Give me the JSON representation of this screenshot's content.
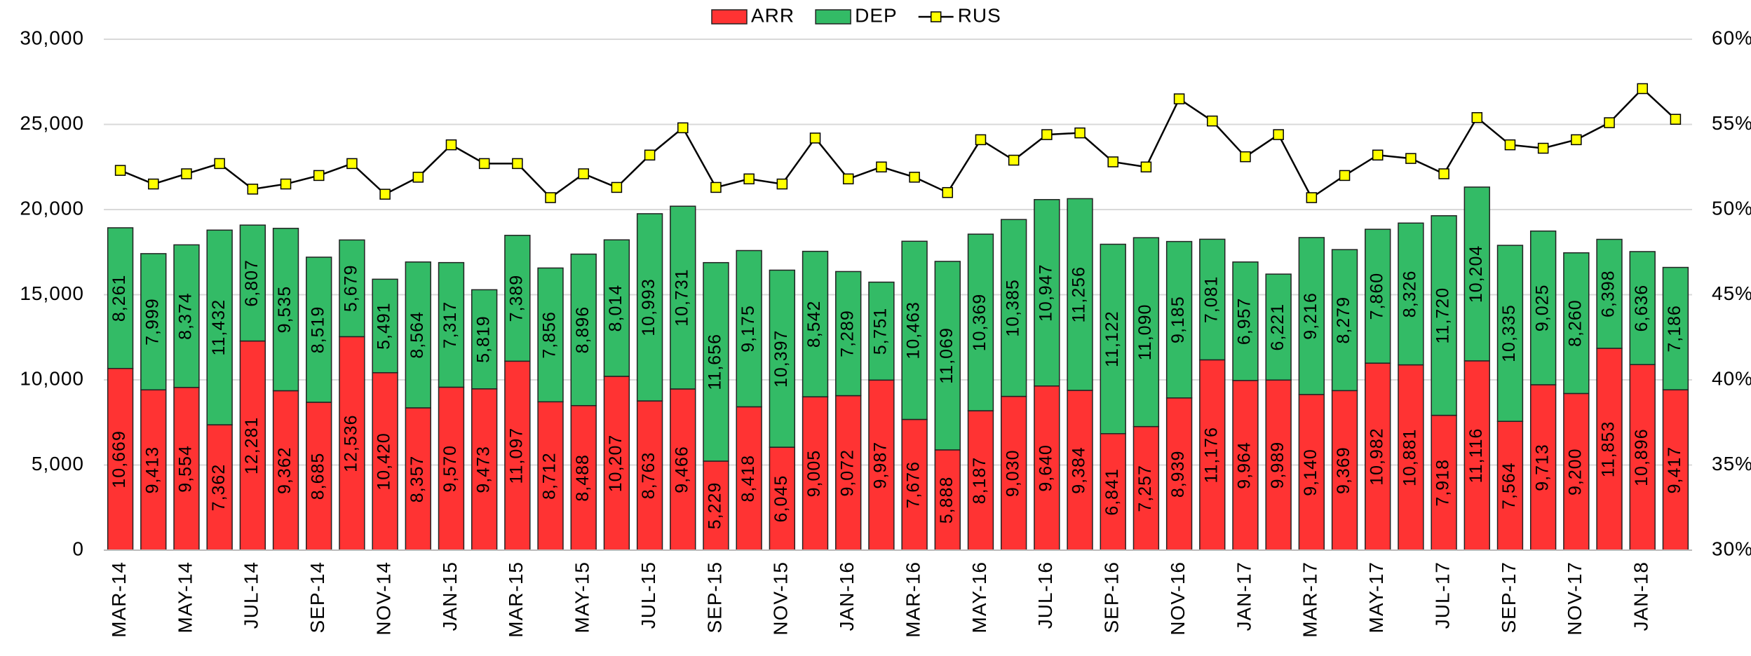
{
  "chart_data": {
    "type": "bar",
    "categories": [
      "MAR-14",
      null,
      "MAY-14",
      null,
      "JUL-14",
      null,
      "SEP-14",
      null,
      "NOV-14",
      null,
      "JAN-15",
      null,
      "MAR-15",
      null,
      "MAY-15",
      null,
      "JUL-15",
      null,
      "SEP-15",
      null,
      "NOV-15",
      null,
      "JAN-16",
      null,
      "MAR-16",
      null,
      "MAY-16",
      null,
      "JUL-16",
      null,
      "SEP-16",
      null,
      "NOV-16",
      null,
      "JAN-17",
      null,
      "MAR-17",
      null,
      "MAY-17",
      null,
      "JUL-17",
      null,
      "SEP-17",
      null,
      "NOV-17",
      null,
      "JAN-18",
      null
    ],
    "series": [
      {
        "name": "ARR",
        "color": "#ff3333",
        "values": [
          10669,
          9413,
          9554,
          7362,
          12281,
          9362,
          8685,
          12536,
          10420,
          8357,
          9570,
          9473,
          11097,
          8712,
          8488,
          10207,
          8763,
          9466,
          5229,
          8418,
          6045,
          9005,
          9072,
          9987,
          7676,
          5888,
          8187,
          9030,
          9640,
          9384,
          6841,
          7257,
          8939,
          11176,
          9964,
          9989,
          9140,
          9369,
          10982,
          10881,
          7918,
          11116,
          7564,
          9713,
          9200,
          11853,
          10896,
          9417
        ],
        "value_labels": [
          "10,669",
          "9,413",
          "9,554",
          "7,362",
          "12,281",
          "9,362",
          "8,685",
          "12,536",
          "10,420",
          "8,357",
          "9,570",
          "9,473",
          "11,097",
          "8,712",
          "8,488",
          "10,207",
          "8,763",
          "9,466",
          "5,229",
          "8,418",
          "6,045",
          "9,005",
          "9,072",
          "9,987",
          "7,676",
          "5,888",
          "8,187",
          "9,030",
          "9,640",
          "9,384",
          "6,841",
          "7,257",
          "8,939",
          "11,176",
          "9,964",
          "9,989",
          "9,140",
          "9,369",
          "10,982",
          "10,881",
          "7,918",
          "11,116",
          "7,564",
          "9,713",
          "9,200",
          "11,853",
          "10,896",
          "9,417"
        ]
      },
      {
        "name": "DEP",
        "color": "#33bb66",
        "values": [
          8261,
          7999,
          8374,
          11432,
          6807,
          9535,
          8519,
          5679,
          5491,
          8564,
          7317,
          5819,
          7389,
          7856,
          8896,
          8014,
          10993,
          10731,
          11656,
          9175,
          10397,
          8542,
          7289,
          5751,
          10463,
          11069,
          10369,
          10385,
          10947,
          11256,
          11122,
          11090,
          9185,
          7081,
          6957,
          6221,
          9216,
          8279,
          7860,
          8326,
          11720,
          10204,
          10335,
          9025,
          8260,
          6398,
          6636,
          7186
        ],
        "value_labels": [
          "8,261",
          "7,999",
          "8,374",
          "11,432",
          "6,807",
          "9,535",
          "8,519",
          "5,679",
          "5,491",
          "8,564",
          "7,317",
          "5,819",
          "7,389",
          "7,856",
          "8,896",
          "8,014",
          "10,993",
          "10,731",
          "11,656",
          "9,175",
          "10,397",
          "8,542",
          "7,289",
          "5,751",
          "10,463",
          "11,069",
          "10,369",
          "10,385",
          "10,947",
          "11,256",
          "11,122",
          "11,090",
          "9,185",
          "7,081",
          "6,957",
          "6,221",
          "9,216",
          "8,279",
          "7,860",
          "8,326",
          "11,720",
          "10,204",
          "10,335",
          "9,025",
          "8,260",
          "6,398",
          "6,636",
          "7,186"
        ]
      },
      {
        "name": "RUS",
        "type": "line",
        "axis": "y2",
        "color": "#000000",
        "marker_color": "#ffff00",
        "values": [
          52.3,
          51.5,
          52.1,
          52.7,
          51.2,
          51.5,
          52.0,
          52.7,
          50.9,
          51.9,
          53.8,
          52.7,
          52.7,
          50.7,
          52.1,
          51.3,
          53.2,
          54.8,
          51.3,
          51.8,
          51.5,
          54.2,
          51.8,
          52.5,
          51.9,
          51.0,
          54.1,
          52.9,
          54.4,
          54.5,
          52.8,
          52.5,
          56.5,
          55.2,
          53.1,
          54.4,
          50.7,
          52.0,
          53.2,
          53.0,
          52.1,
          55.4,
          53.8,
          53.6,
          54.1,
          55.1,
          57.1,
          55.3
        ]
      }
    ],
    "stacked": true,
    "ylim": [
      0,
      30000
    ],
    "yticks": [
      0,
      {
        "value": 5000,
        "label": "5,000"
      },
      {
        "value": 10000,
        "label": "10,000"
      },
      {
        "value": 15000,
        "label": "15,000"
      },
      {
        "value": 20000,
        "label": "20,000"
      },
      {
        "value": 25000,
        "label": "25,000"
      },
      {
        "value": 30000,
        "label": "30,000"
      }
    ],
    "y2lim": [
      30,
      60
    ],
    "y2ticks": [
      {
        "value": 30,
        "label": "30%"
      },
      {
        "value": 35,
        "label": "35%"
      },
      {
        "value": 40,
        "label": "40%"
      },
      {
        "value": 45,
        "label": "45%"
      },
      {
        "value": 50,
        "label": "50%"
      },
      {
        "value": 55,
        "label": "55%"
      },
      {
        "value": 60,
        "label": "60%"
      }
    ],
    "grid": true,
    "legend": "top"
  }
}
